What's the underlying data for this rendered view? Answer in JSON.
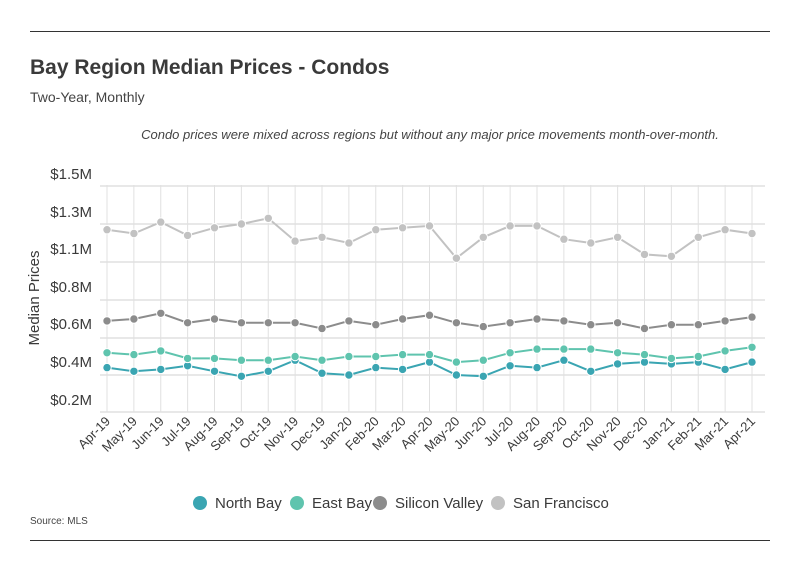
{
  "header": {
    "title": "Bay Region Median Prices - Condos",
    "subtitle": "Two-Year, Monthly",
    "note": "Condo prices were mixed across regions but without any major price movements month-over-month."
  },
  "footer": {
    "source": "Source:  MLS"
  },
  "chart_data": {
    "type": "line",
    "title": "Bay Region Median Prices - Condos",
    "subtitle": "Two-Year, Monthly",
    "ylabel": "Median Prices",
    "xlabel": "",
    "ylim": [
      0.2,
      1.5
    ],
    "y_ticks": [
      {
        "value": 0.2,
        "label": "$0.2M"
      },
      {
        "value": 0.4,
        "label": "$0.4M"
      },
      {
        "value": 0.6,
        "label": "$0.6M"
      },
      {
        "value": 0.8,
        "label": "$0.8M"
      },
      {
        "value": 1.1,
        "label": "$1.1M"
      },
      {
        "value": 1.3,
        "label": "$1.3M"
      },
      {
        "value": 1.5,
        "label": "$1.5M"
      }
    ],
    "grid": true,
    "legend_position": "bottom",
    "categories": [
      "Apr-19",
      "May-19",
      "Jun-19",
      "Jul-19",
      "Aug-19",
      "Sep-19",
      "Oct-19",
      "Nov-19",
      "Dec-19",
      "Jan-20",
      "Feb-20",
      "Mar-20",
      "Apr-20",
      "May-20",
      "Jun-20",
      "Jul-20",
      "Aug-20",
      "Sep-20",
      "Oct-20",
      "Nov-20",
      "Dec-20",
      "Jan-21",
      "Feb-21",
      "Mar-21",
      "Apr-21"
    ],
    "series": [
      {
        "name": "North Bay",
        "color": "#3aa5b2",
        "values": [
          0.44,
          0.42,
          0.43,
          0.45,
          0.42,
          0.39,
          0.42,
          0.48,
          0.41,
          0.4,
          0.44,
          0.43,
          0.47,
          0.4,
          0.39,
          0.45,
          0.44,
          0.48,
          0.42,
          0.46,
          0.47,
          0.46,
          0.47,
          0.43,
          0.47
        ]
      },
      {
        "name": "East Bay",
        "color": "#5fc4ae",
        "values": [
          0.52,
          0.51,
          0.53,
          0.49,
          0.49,
          0.48,
          0.48,
          0.5,
          0.48,
          0.5,
          0.5,
          0.51,
          0.51,
          0.47,
          0.48,
          0.52,
          0.54,
          0.54,
          0.54,
          0.52,
          0.51,
          0.49,
          0.5,
          0.53,
          0.55
        ]
      },
      {
        "name": "Silicon Valley",
        "color": "#8c8c8c",
        "values": [
          0.69,
          0.7,
          0.73,
          0.68,
          0.7,
          0.68,
          0.68,
          0.68,
          0.65,
          0.69,
          0.67,
          0.7,
          0.72,
          0.68,
          0.66,
          0.68,
          0.7,
          0.69,
          0.67,
          0.68,
          0.65,
          0.67,
          0.67,
          0.69,
          0.71
        ]
      },
      {
        "name": "San Francisco",
        "color": "#c2c2c2",
        "values": [
          1.27,
          1.25,
          1.31,
          1.24,
          1.28,
          1.3,
          1.33,
          1.21,
          1.23,
          1.2,
          1.27,
          1.28,
          1.29,
          1.12,
          1.23,
          1.29,
          1.29,
          1.22,
          1.2,
          1.23,
          1.14,
          1.13,
          1.23,
          1.27,
          1.25
        ]
      }
    ]
  }
}
